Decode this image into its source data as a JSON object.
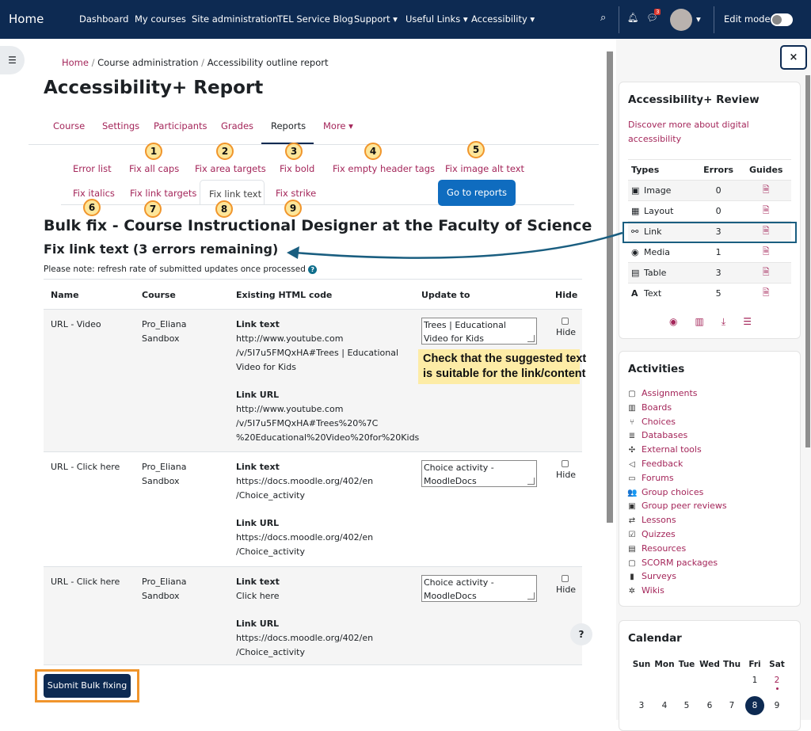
{
  "nav": {
    "home": "Home",
    "items": [
      "Dashboard",
      "My courses",
      "Site administration",
      "TEL Service Blog",
      "Support ▾",
      "Useful Links ▾",
      "Accessibility ▾"
    ],
    "notif_count": "3",
    "edit_mode": "Edit mode"
  },
  "breadcrumb": [
    "Home",
    "Course administration",
    "Accessibility outline report"
  ],
  "page_title": "Accessibility+ Report",
  "course_tabs": [
    "Course",
    "Settings",
    "Participants",
    "Grades",
    "Reports",
    "More ▾"
  ],
  "fix_tabs": {
    "row1": [
      "Error list",
      "Fix all caps",
      "Fix area targets",
      "Fix bold",
      "Fix empty header tags",
      "Fix image alt text"
    ],
    "row2": [
      "Fix italics",
      "Fix link targets",
      "Fix link text",
      "Fix strike"
    ],
    "go_reports": "Go to reports"
  },
  "annotations": [
    "1",
    "2",
    "3",
    "4",
    "5",
    "6",
    "7",
    "8",
    "9"
  ],
  "heading": "Bulk fix - Course Instructional Designer at the Faculty of Science",
  "subheading": "Fix link text (3 errors remaining)",
  "note": "Please note: refresh rate of submitted updates once processed",
  "table": {
    "headers": [
      "Name",
      "Course",
      "Existing HTML code",
      "Update to",
      "Hide"
    ],
    "link_text_label": "Link text",
    "link_url_label": "Link URL",
    "hide_label": "Hide",
    "rows": [
      {
        "name": "URL - Video",
        "course": [
          "Pro_Eliana",
          "Sandbox"
        ],
        "link_text": [
          "http://www.youtube.com",
          "/v/5I7u5FMQxHA#Trees | Educational",
          "Video for Kids"
        ],
        "link_url": [
          "http://www.youtube.com",
          "/v/5I7u5FMQxHA#Trees%20%7C",
          "%20Educational%20Video%20for%20Kids"
        ],
        "update": [
          "Trees | Educational",
          "Video for Kids"
        ]
      },
      {
        "name": "URL - Click here",
        "course": [
          "Pro_Eliana",
          "Sandbox"
        ],
        "link_text": [
          "https://docs.moodle.org/402/en",
          "/Choice_activity"
        ],
        "link_url": [
          "https://docs.moodle.org/402/en",
          "/Choice_activity"
        ],
        "update": [
          "Choice activity -",
          "MoodleDocs"
        ]
      },
      {
        "name": "URL - Click here",
        "course": [
          "Pro_Eliana",
          "Sandbox"
        ],
        "link_text": [
          "Click here"
        ],
        "link_url": [
          "https://docs.moodle.org/402/en",
          "/Choice_activity"
        ],
        "update": [
          "Choice activity -",
          "MoodleDocs"
        ]
      }
    ]
  },
  "callout": [
    "Check that the suggested text",
    "is suitable for the link/content"
  ],
  "submit": "Submit Bulk fixing",
  "help": "?",
  "review": {
    "title": "Accessibility+ Review",
    "link": [
      "Discover more about digital",
      "accessibility"
    ],
    "headers": [
      "Types",
      "Errors",
      "Guides"
    ],
    "rows": [
      {
        "icon": "▣",
        "type": "Image",
        "errors": "0"
      },
      {
        "icon": "▦",
        "type": "Layout",
        "errors": "0"
      },
      {
        "icon": "⚯",
        "type": "Link",
        "errors": "3"
      },
      {
        "icon": "◉",
        "type": "Media",
        "errors": "1"
      },
      {
        "icon": "▤",
        "type": "Table",
        "errors": "3"
      },
      {
        "icon": "A",
        "type": "Text",
        "errors": "5"
      }
    ]
  },
  "activities": {
    "title": "Activities",
    "items": [
      {
        "icon": "▢",
        "label": "Assignments"
      },
      {
        "icon": "▥",
        "label": "Boards"
      },
      {
        "icon": "⑂",
        "label": "Choices"
      },
      {
        "icon": "≣",
        "label": "Databases"
      },
      {
        "icon": "✣",
        "label": "External tools"
      },
      {
        "icon": "◁",
        "label": "Feedback"
      },
      {
        "icon": "▭",
        "label": "Forums"
      },
      {
        "icon": "👥",
        "label": "Group choices"
      },
      {
        "icon": "▣",
        "label": "Group peer reviews"
      },
      {
        "icon": "⇄",
        "label": "Lessons"
      },
      {
        "icon": "☑",
        "label": "Quizzes"
      },
      {
        "icon": "▤",
        "label": "Resources"
      },
      {
        "icon": "▢",
        "label": "SCORM packages"
      },
      {
        "icon": "▮",
        "label": "Surveys"
      },
      {
        "icon": "✲",
        "label": "Wikis"
      }
    ]
  },
  "calendar": {
    "title": "Calendar",
    "days": [
      "Sun",
      "Mon",
      "Tue",
      "Wed",
      "Thu",
      "Fri",
      "Sat"
    ],
    "week1": [
      "1",
      "2"
    ],
    "week2": [
      "3",
      "4",
      "5",
      "6",
      "7",
      "8",
      "9"
    ],
    "today": "8"
  },
  "colors": {
    "navbar": "#0d2a52",
    "link": "#a4265a",
    "primary": "#0f6cbf",
    "annotation": "#f0952c",
    "callout": "#fdeca6"
  }
}
